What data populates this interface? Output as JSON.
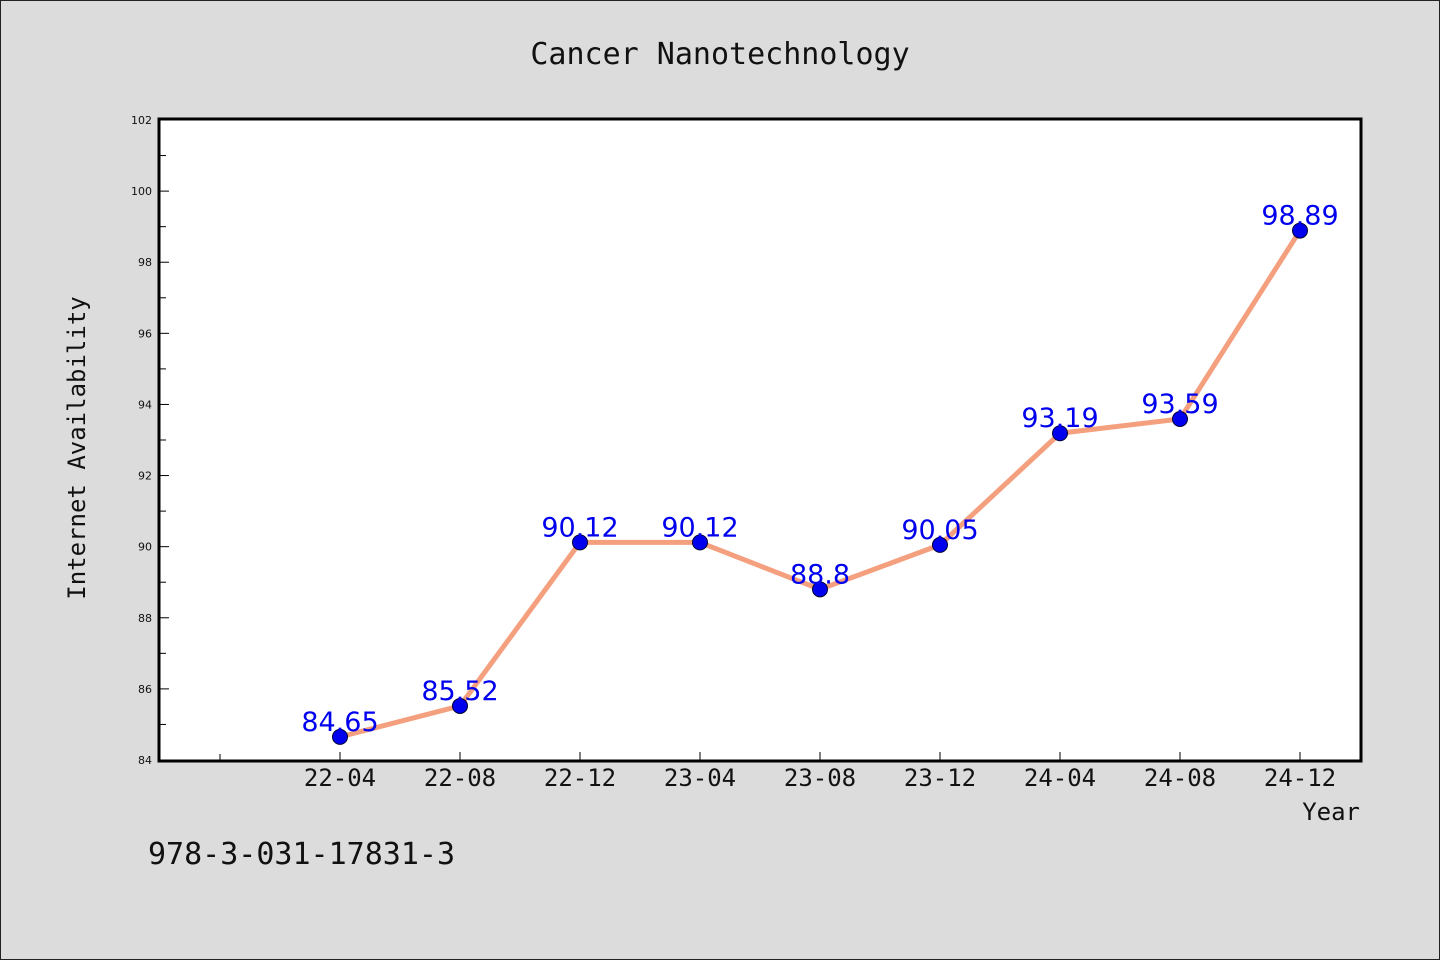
{
  "chart_data": {
    "type": "line",
    "title": "Cancer Nanotechnology",
    "xlabel": "Year",
    "ylabel": "Internet Availability",
    "categories": [
      "22-04",
      "22-08",
      "22-12",
      "23-04",
      "23-08",
      "23-12",
      "24-04",
      "24-08",
      "24-12"
    ],
    "values": [
      84.65,
      85.52,
      90.12,
      90.12,
      88.8,
      90.05,
      93.19,
      93.59,
      98.89
    ],
    "data_labels": [
      "84.65",
      "85.52",
      "90.12",
      "90.12",
      "88.8",
      "90.05",
      "93.19",
      "93.59",
      "98.89"
    ],
    "ylim": [
      84,
      102
    ],
    "yticks": [
      "84",
      "86",
      "88",
      "90",
      "92",
      "94",
      "96",
      "98",
      "100",
      "102"
    ],
    "grid": false,
    "colors": {
      "line": "#f4a07e",
      "marker": "#0000ee",
      "label": "#0000ee",
      "background": "#dcdcdc",
      "plot_background": "#ffffff"
    }
  },
  "footer_text": "978-3-031-17831-3"
}
